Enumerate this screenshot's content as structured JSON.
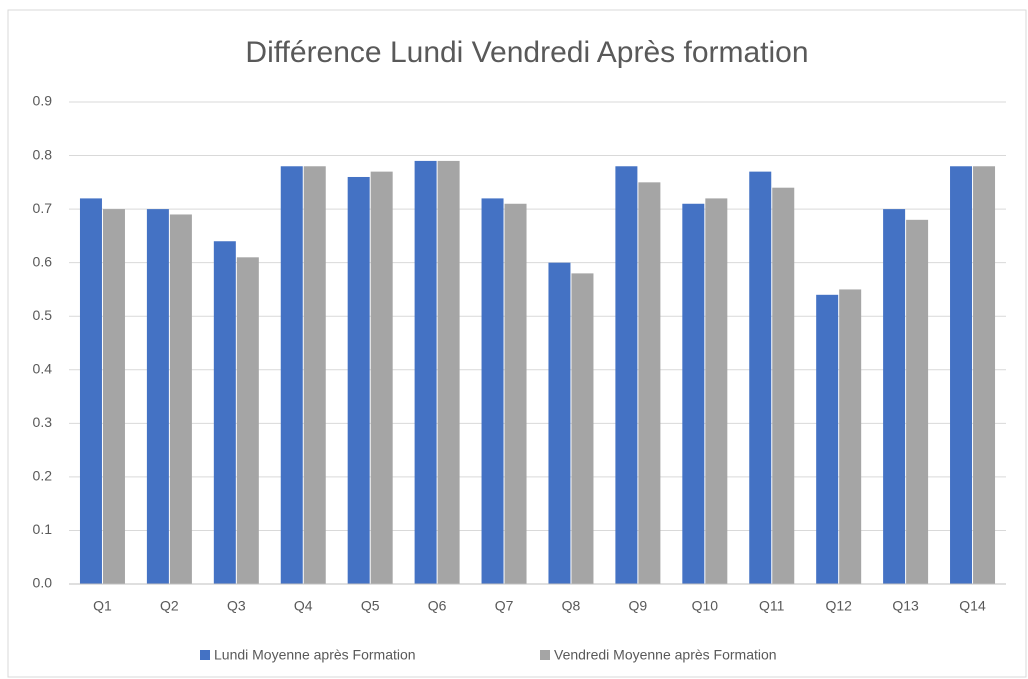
{
  "chart_data": {
    "type": "bar",
    "title": "Différence Lundi Vendredi Après formation",
    "categories": [
      "Q1",
      "Q2",
      "Q3",
      "Q4",
      "Q5",
      "Q6",
      "Q7",
      "Q8",
      "Q9",
      "Q10",
      "Q11",
      "Q12",
      "Q13",
      "Q14"
    ],
    "series": [
      {
        "name": "Lundi Moyenne après Formation",
        "color": "#4472c4",
        "values": [
          0.72,
          0.7,
          0.64,
          0.78,
          0.76,
          0.79,
          0.72,
          0.6,
          0.78,
          0.71,
          0.77,
          0.54,
          0.7,
          0.78
        ]
      },
      {
        "name": "Vendredi Moyenne après Formation",
        "color": "#a5a5a5",
        "values": [
          0.7,
          0.69,
          0.61,
          0.78,
          0.77,
          0.79,
          0.71,
          0.58,
          0.75,
          0.72,
          0.74,
          0.55,
          0.68,
          0.78
        ]
      }
    ],
    "ylim": [
      0,
      0.9
    ],
    "yticks": [
      {
        "value": 0,
        "label": "0.0"
      },
      0.1,
      0.2,
      0.3,
      0.4,
      0.5,
      0.6,
      0.7,
      0.8,
      0.9
    ],
    "grid": true,
    "legend": "bottom"
  }
}
